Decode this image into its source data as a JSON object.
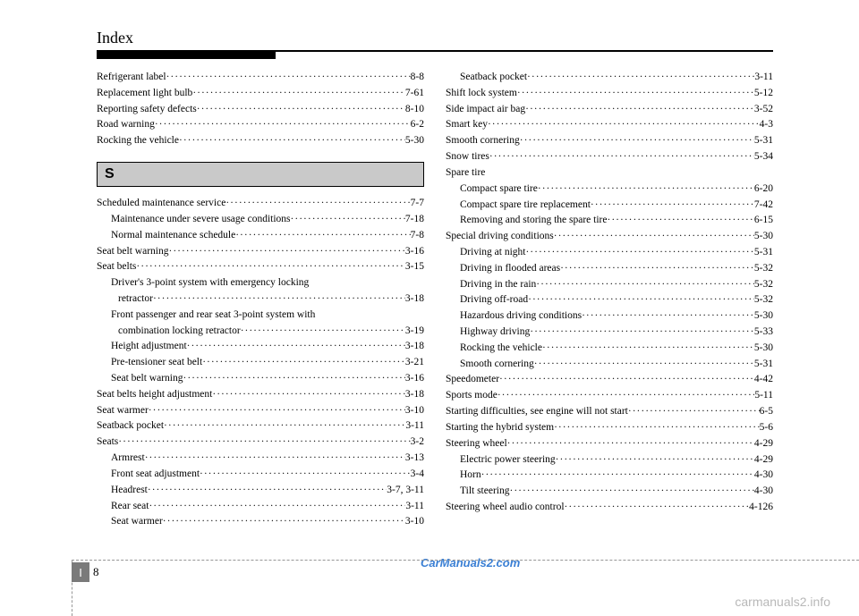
{
  "page_title": "Index",
  "section_letter": "S",
  "page_number_prefix": "I",
  "page_number": "8",
  "watermark_blue": "CarManuals2.com",
  "bottom_watermark": "carmanuals2.info",
  "left_top": [
    {
      "label": "Refrigerant label",
      "page": "8-8",
      "indent": 0
    },
    {
      "label": "Replacement light bulb",
      "page": "7-61",
      "indent": 0
    },
    {
      "label": "Reporting safety defects",
      "page": "8-10",
      "indent": 0
    },
    {
      "label": "Road warning",
      "page": "6-2",
      "indent": 0
    },
    {
      "label": "Rocking the vehicle",
      "page": "5-30",
      "indent": 0
    }
  ],
  "left_bottom": [
    {
      "label": "Scheduled maintenance service",
      "page": "7-7",
      "indent": 0
    },
    {
      "label": "Maintenance under severe usage conditions",
      "page": "7-18",
      "indent": 1
    },
    {
      "label": "Normal maintenance schedule",
      "page": "7-8",
      "indent": 1
    },
    {
      "label": "Seat belt warning",
      "page": "3-16",
      "indent": 0
    },
    {
      "label": "Seat belts",
      "page": "3-15",
      "indent": 0
    },
    {
      "wrap": true,
      "line1": "Driver's 3-point system with emergency locking",
      "line2": "retractor",
      "page": "3-18",
      "indent": 1
    },
    {
      "wrap": true,
      "line1": "Front passenger and rear seat 3-point system with",
      "line2": "combination locking retractor",
      "page": "3-19",
      "indent": 1
    },
    {
      "label": "Height adjustment",
      "page": "3-18",
      "indent": 1
    },
    {
      "label": "Pre-tensioner seat belt",
      "page": "3-21",
      "indent": 1
    },
    {
      "label": "Seat belt warning",
      "page": "3-16",
      "indent": 1
    },
    {
      "label": "Seat belts height adjustment",
      "page": "3-18",
      "indent": 0
    },
    {
      "label": "Seat warmer",
      "page": "3-10",
      "indent": 0
    },
    {
      "label": "Seatback pocket",
      "page": "3-11",
      "indent": 0
    },
    {
      "label": "Seats",
      "page": "3-2",
      "indent": 0
    },
    {
      "label": "Armrest",
      "page": "3-13",
      "indent": 1
    },
    {
      "label": "Front seat adjustment",
      "page": "3-4",
      "indent": 1
    },
    {
      "label": "Headrest",
      "page": "3-7, 3-11",
      "indent": 1
    },
    {
      "label": "Rear seat",
      "page": "3-11",
      "indent": 1
    },
    {
      "label": "Seat warmer",
      "page": "3-10",
      "indent": 1
    }
  ],
  "right": [
    {
      "label": "Seatback pocket",
      "page": "3-11",
      "indent": 1
    },
    {
      "label": "Shift lock system",
      "page": "5-12",
      "indent": 0
    },
    {
      "label": "Side impact air bag",
      "page": "3-52",
      "indent": 0
    },
    {
      "label": "Smart key",
      "page": "4-3",
      "indent": 0
    },
    {
      "label": "Smooth cornering",
      "page": "5-31",
      "indent": 0
    },
    {
      "label": "Snow tires",
      "page": "5-34",
      "indent": 0
    },
    {
      "label": "Spare tire",
      "page": "",
      "indent": 0,
      "noleader": true
    },
    {
      "label": "Compact spare tire",
      "page": "6-20",
      "indent": 1
    },
    {
      "label": "Compact spare tire replacement",
      "page": "7-42",
      "indent": 1
    },
    {
      "label": "Removing and storing the spare tire",
      "page": "6-15",
      "indent": 1
    },
    {
      "label": "Special driving conditions",
      "page": "5-30",
      "indent": 0
    },
    {
      "label": "Driving at night",
      "page": "5-31",
      "indent": 1
    },
    {
      "label": "Driving in flooded areas",
      "page": "5-32",
      "indent": 1
    },
    {
      "label": "Driving in the rain",
      "page": "5-32",
      "indent": 1
    },
    {
      "label": "Driving off-road",
      "page": "5-32",
      "indent": 1
    },
    {
      "label": "Hazardous driving conditions",
      "page": "5-30",
      "indent": 1
    },
    {
      "label": "Highway driving",
      "page": "5-33",
      "indent": 1
    },
    {
      "label": "Rocking the vehicle",
      "page": "5-30",
      "indent": 1
    },
    {
      "label": "Smooth cornering",
      "page": "5-31",
      "indent": 1
    },
    {
      "label": "Speedometer",
      "page": "4-42",
      "indent": 0
    },
    {
      "label": "Sports mode",
      "page": "5-11",
      "indent": 0
    },
    {
      "label": "Starting difficulties, see engine will not start",
      "page": "6-5",
      "indent": 0
    },
    {
      "label": "Starting the hybrid system",
      "page": "5-6",
      "indent": 0
    },
    {
      "label": "Steering wheel",
      "page": "4-29",
      "indent": 0
    },
    {
      "label": "Electric power steering",
      "page": "4-29",
      "indent": 1
    },
    {
      "label": "Horn",
      "page": "4-30",
      "indent": 1
    },
    {
      "label": "Tilt steering",
      "page": "4-30",
      "indent": 1
    },
    {
      "label": "Steering wheel audio control",
      "page": "4-126",
      "indent": 0
    }
  ]
}
